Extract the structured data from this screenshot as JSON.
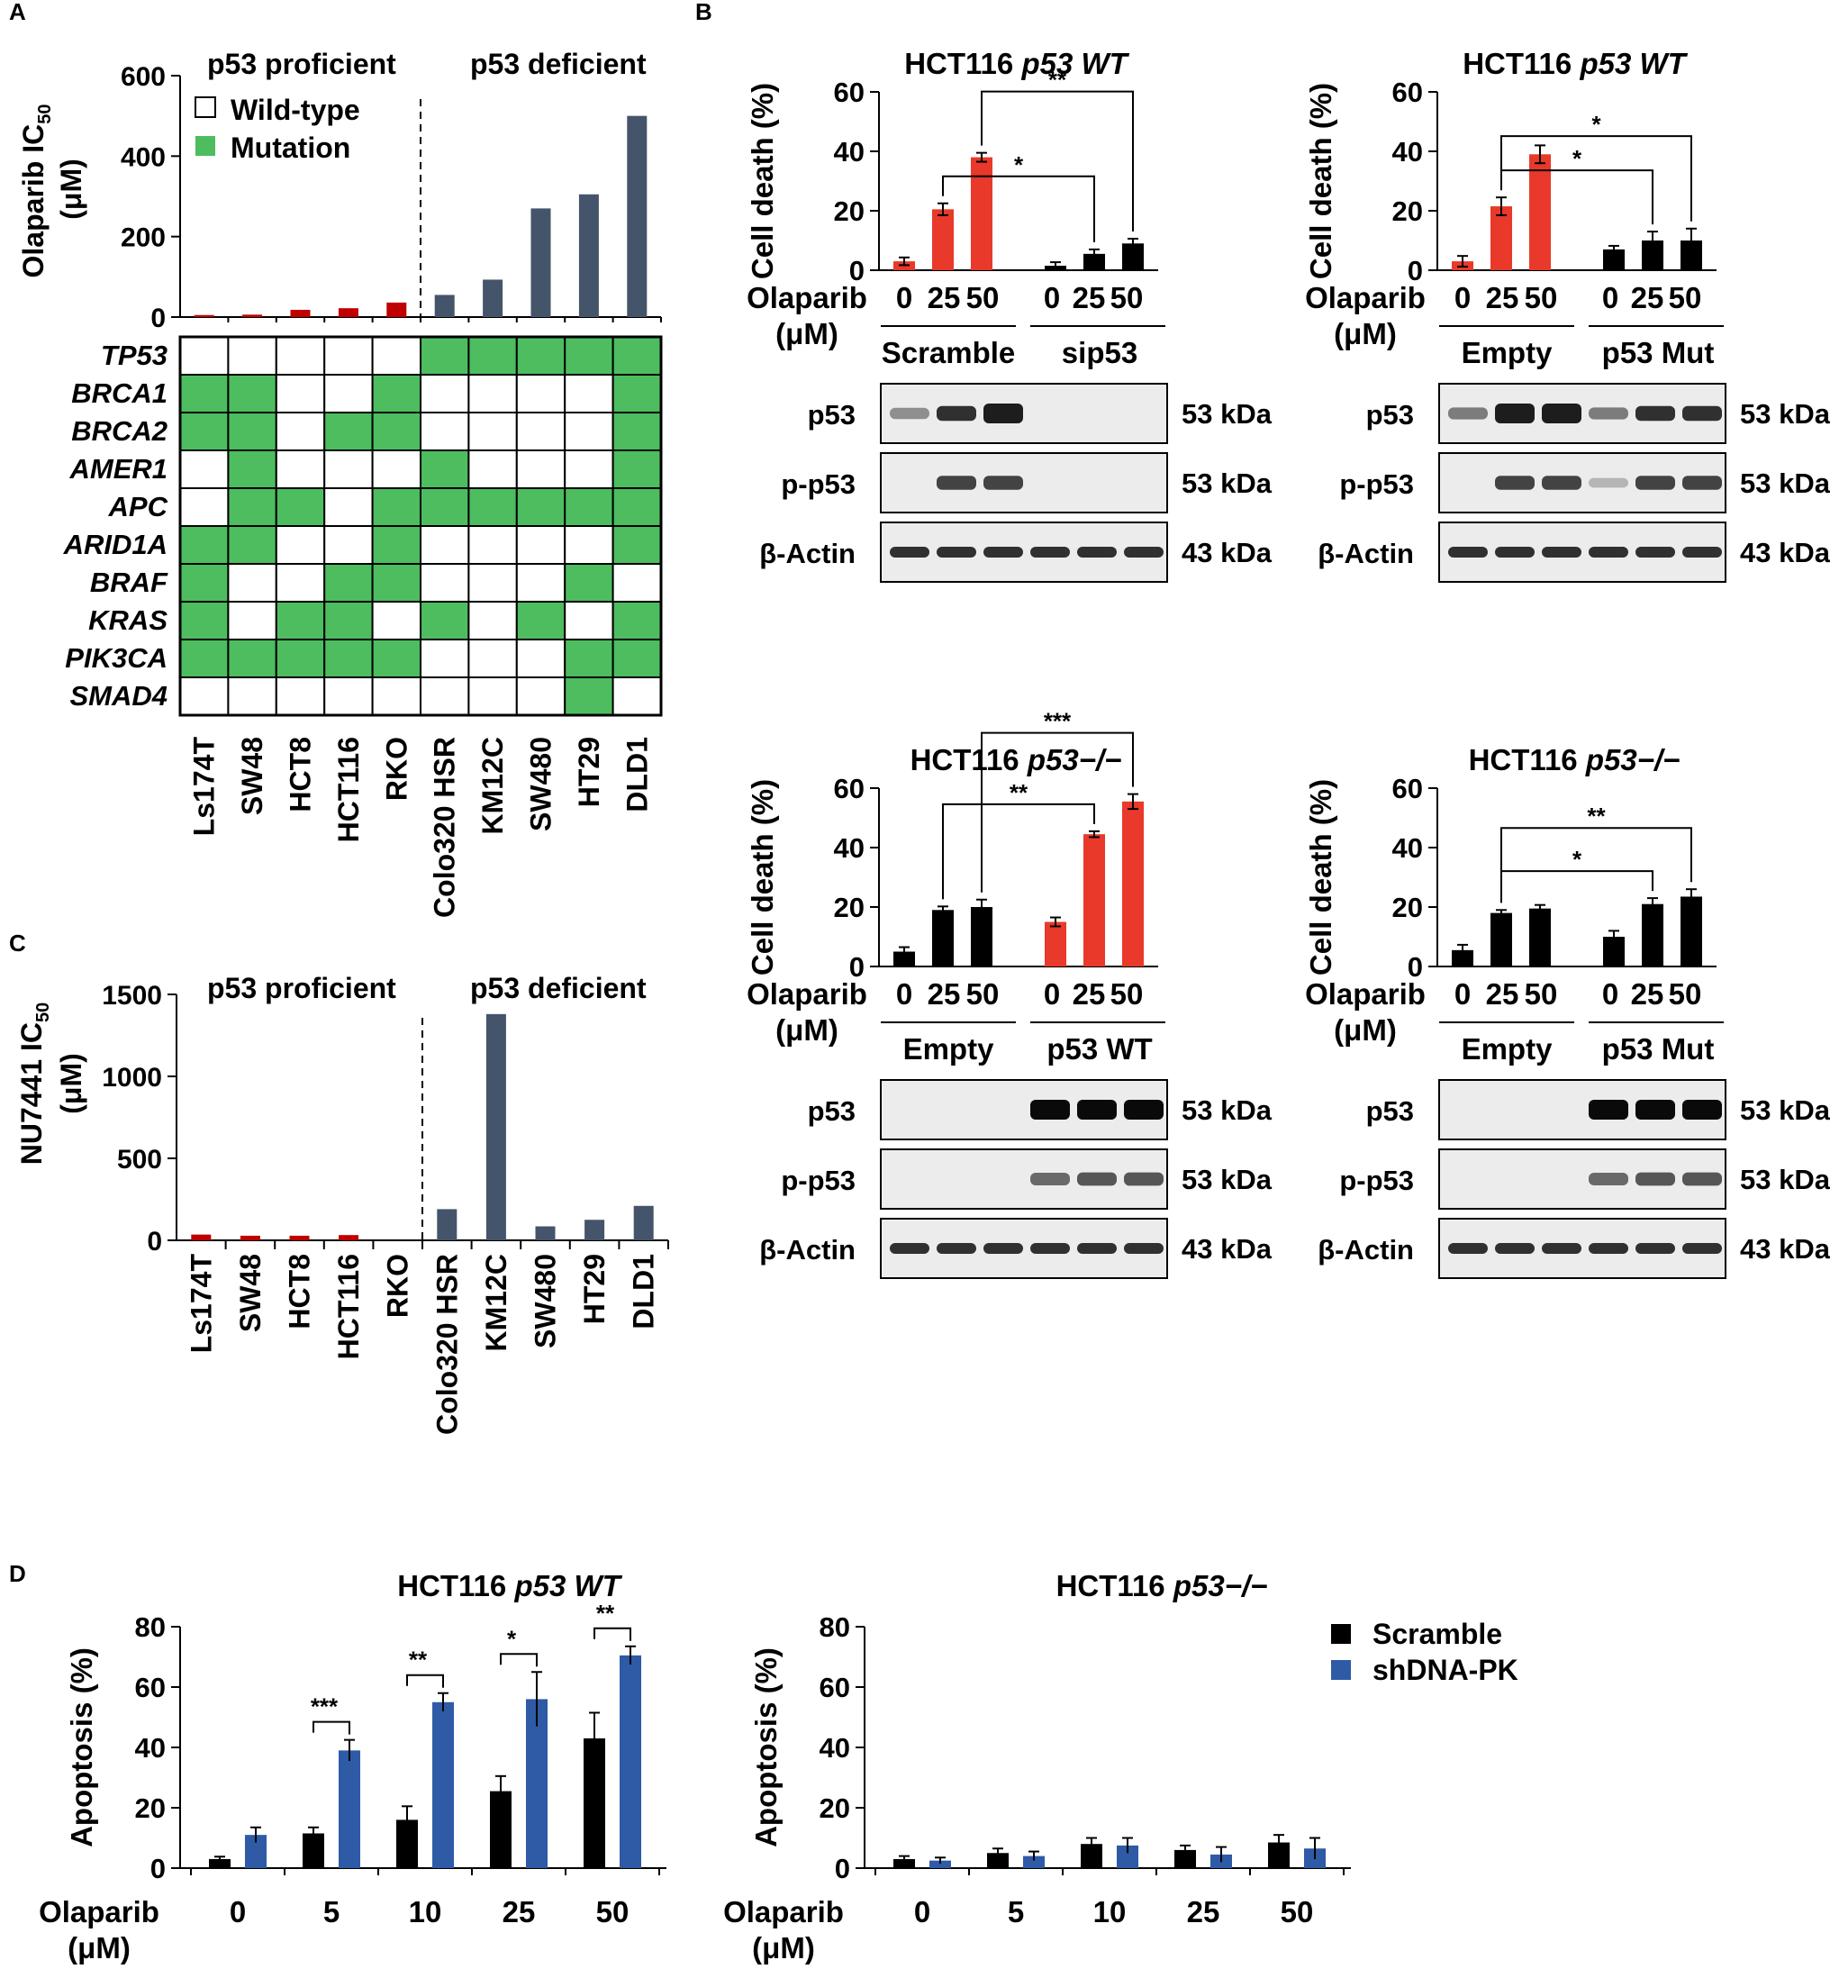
{
  "chart_data": [
    {
      "panel": "A",
      "type": "bar",
      "title": "",
      "ylabel": "Olaparib IC50 (μM)",
      "ylim": [
        0,
        600
      ],
      "yticks": [
        0,
        200,
        400,
        600
      ],
      "groups": [
        "p53 proficient",
        "p53 deficient"
      ],
      "legend": [
        "Wild-type",
        "Mutation"
      ],
      "categories": [
        "Ls174T",
        "SW48",
        "HCT8",
        "HCT116",
        "RKO",
        "Colo320 HSR",
        "KM12C",
        "SW480",
        "HT29",
        "DLD1"
      ],
      "values": [
        5,
        6,
        18,
        22,
        36,
        55,
        93,
        270,
        305,
        500
      ],
      "bar_colors": [
        "#c00000",
        "#c00000",
        "#c00000",
        "#c00000",
        "#c00000",
        "#44546a",
        "#44546a",
        "#44546a",
        "#44546a",
        "#44546a"
      ],
      "divider_after_index": 4
    },
    {
      "panel": "A-heatmap",
      "type": "heatmap",
      "rows": [
        "TP53",
        "BRCA1",
        "BRCA2",
        "AMER1",
        "APC",
        "ARID1A",
        "BRAF",
        "KRAS",
        "PIK3CA",
        "SMAD4"
      ],
      "columns": [
        "Ls174T",
        "SW48",
        "HCT8",
        "HCT116",
        "RKO",
        "Colo320 HSR",
        "KM12C",
        "SW480",
        "HT29",
        "DLD1"
      ],
      "matrix": [
        [
          0,
          0,
          0,
          0,
          0,
          1,
          1,
          1,
          1,
          1
        ],
        [
          1,
          1,
          0,
          0,
          1,
          0,
          0,
          0,
          0,
          1
        ],
        [
          1,
          1,
          0,
          1,
          1,
          0,
          0,
          0,
          0,
          1
        ],
        [
          0,
          1,
          0,
          0,
          0,
          1,
          0,
          0,
          0,
          1
        ],
        [
          0,
          1,
          1,
          0,
          1,
          1,
          1,
          1,
          1,
          1
        ],
        [
          1,
          1,
          0,
          0,
          1,
          0,
          0,
          0,
          0,
          1
        ],
        [
          1,
          0,
          0,
          1,
          1,
          0,
          0,
          0,
          1,
          0
        ],
        [
          1,
          0,
          1,
          1,
          0,
          1,
          0,
          1,
          0,
          1
        ],
        [
          1,
          1,
          1,
          1,
          1,
          0,
          0,
          0,
          1,
          1
        ],
        [
          0,
          0,
          0,
          0,
          0,
          0,
          0,
          0,
          1,
          0
        ]
      ],
      "colors": {
        "wild_type": "#ffffff",
        "mutation": "#4dbd5f"
      }
    },
    {
      "panel": "C",
      "type": "bar",
      "ylabel": "NU7441 IC50 (μM)",
      "ylim": [
        0,
        1500
      ],
      "yticks": [
        0,
        500,
        1000,
        1500
      ],
      "groups": [
        "p53 proficient",
        "p53 deficient"
      ],
      "categories": [
        "Ls174T",
        "SW48",
        "HCT8",
        "HCT116",
        "RKO",
        "Colo320 HSR",
        "KM12C",
        "SW480",
        "HT29",
        "DLD1"
      ],
      "values": [
        35,
        28,
        28,
        32,
        0,
        190,
        1380,
        85,
        125,
        210
      ],
      "bar_colors": [
        "#c00000",
        "#c00000",
        "#c00000",
        "#c00000",
        "#c00000",
        "#44546a",
        "#44546a",
        "#44546a",
        "#44546a",
        "#44546a"
      ],
      "divider_after_index": 4
    },
    {
      "panel": "B1",
      "type": "bar",
      "title": "HCT116 ",
      "title_italic": "p53 WT",
      "ylabel": "Cell death (%)",
      "xlabel": "Olaparib (μM)",
      "ylim": [
        0,
        60
      ],
      "yticks": [
        0,
        20,
        40,
        60
      ],
      "categories": [
        "0",
        "25",
        "50",
        "0",
        "25",
        "50"
      ],
      "values": [
        3,
        20.5,
        38,
        1.5,
        5.5,
        9
      ],
      "errors": [
        1.3,
        2.0,
        1.5,
        1.2,
        1.5,
        1.6
      ],
      "bar_colors": [
        "#e8392b",
        "#e8392b",
        "#e8392b",
        "#000000",
        "#000000",
        "#000000"
      ],
      "groups": [
        "Scramble",
        "sip53"
      ],
      "sig": [
        {
          "from": 1,
          "to": 4,
          "label": "*"
        },
        {
          "from": 2,
          "to": 5,
          "label": "**"
        }
      ],
      "blots": [
        {
          "label": "p53",
          "kda": "53 kDa"
        },
        {
          "label": "p-p53",
          "kda": "53 kDa"
        },
        {
          "label": "β-Actin",
          "kda": "43 kDa"
        }
      ],
      "blot_intensity": [
        [
          0.3,
          0.8,
          0.9,
          0.0,
          0.0,
          0.0
        ],
        [
          0.0,
          0.7,
          0.7,
          0.0,
          0.0,
          0.0
        ],
        [
          0.8,
          0.8,
          0.8,
          0.8,
          0.8,
          0.8
        ]
      ]
    },
    {
      "panel": "B2",
      "type": "bar",
      "title": "HCT116 ",
      "title_italic": "p53 WT",
      "ylabel": "Cell death (%)",
      "xlabel": "Olaparib (μM)",
      "ylim": [
        0,
        60
      ],
      "yticks": [
        0,
        20,
        40,
        60
      ],
      "categories": [
        "0",
        "25",
        "50",
        "0",
        "25",
        "50"
      ],
      "values": [
        3,
        21.5,
        39,
        7,
        10,
        10
      ],
      "errors": [
        1.8,
        3.0,
        3.0,
        1.2,
        3.0,
        4.0
      ],
      "bar_colors": [
        "#e8392b",
        "#e8392b",
        "#e8392b",
        "#000000",
        "#000000",
        "#000000"
      ],
      "groups": [
        "Empty",
        "p53 Mut"
      ],
      "sig": [
        {
          "from": 1,
          "to": 4,
          "label": "*"
        },
        {
          "from": 1,
          "to": 5,
          "label": "*"
        }
      ],
      "blots": [
        {
          "label": "p53",
          "kda": "53 kDa"
        },
        {
          "label": "p-p53",
          "kda": "53 kDa"
        },
        {
          "label": "β-Actin",
          "kda": "43 kDa"
        }
      ],
      "blot_intensity": [
        [
          0.4,
          0.9,
          0.9,
          0.4,
          0.8,
          0.8
        ],
        [
          0.0,
          0.7,
          0.7,
          0.1,
          0.7,
          0.7
        ],
        [
          0.8,
          0.8,
          0.8,
          0.8,
          0.8,
          0.8
        ]
      ]
    },
    {
      "panel": "B3",
      "type": "bar",
      "title": "HCT116 ",
      "title_italic": "p53−/−",
      "ylabel": "Cell death (%)",
      "xlabel": "Olaparib (μM)",
      "ylim": [
        0,
        60
      ],
      "yticks": [
        0,
        20,
        40,
        60
      ],
      "categories": [
        "0",
        "25",
        "50",
        "0",
        "25",
        "50"
      ],
      "values": [
        5,
        19,
        20,
        15,
        44.5,
        55.5
      ],
      "errors": [
        1.5,
        1.2,
        2.5,
        1.5,
        1.0,
        2.5
      ],
      "bar_colors": [
        "#000000",
        "#000000",
        "#000000",
        "#e8392b",
        "#e8392b",
        "#e8392b"
      ],
      "groups": [
        "Empty",
        "p53 WT"
      ],
      "sig": [
        {
          "from": 1,
          "to": 4,
          "label": "**"
        },
        {
          "from": 2,
          "to": 5,
          "label": "***"
        }
      ],
      "blots": [
        {
          "label": "p53",
          "kda": "53 kDa"
        },
        {
          "label": "p-p53",
          "kda": "53 kDa"
        },
        {
          "label": "β-Actin",
          "kda": "43 kDa"
        }
      ],
      "blot_intensity": [
        [
          0.0,
          0.0,
          0.0,
          1.0,
          1.0,
          1.0
        ],
        [
          0.0,
          0.0,
          0.0,
          0.5,
          0.6,
          0.6
        ],
        [
          0.8,
          0.8,
          0.8,
          0.8,
          0.8,
          0.8
        ]
      ]
    },
    {
      "panel": "B4",
      "type": "bar",
      "title": "HCT116 ",
      "title_italic": "p53−/−",
      "ylabel": "Cell death (%)",
      "xlabel": "Olaparib (μM)",
      "ylim": [
        0,
        60
      ],
      "yticks": [
        0,
        20,
        40,
        60
      ],
      "categories": [
        "0",
        "25",
        "50",
        "0",
        "25",
        "50"
      ],
      "values": [
        5.5,
        18,
        19.5,
        10,
        21,
        23.5
      ],
      "errors": [
        1.8,
        1.0,
        1.2,
        2.0,
        2.0,
        2.5
      ],
      "bar_colors": [
        "#000000",
        "#000000",
        "#000000",
        "#000000",
        "#000000",
        "#000000"
      ],
      "groups": [
        "Empty",
        "p53 Mut"
      ],
      "sig": [
        {
          "from": 1,
          "to": 4,
          "label": "*"
        },
        {
          "from": 1,
          "to": 5,
          "label": "**"
        }
      ],
      "blots": [
        {
          "label": "p53",
          "kda": "53 kDa"
        },
        {
          "label": "p-p53",
          "kda": "53 kDa"
        },
        {
          "label": "β-Actin",
          "kda": "43 kDa"
        }
      ],
      "blot_intensity": [
        [
          0.0,
          0.0,
          0.0,
          1.0,
          1.0,
          1.0
        ],
        [
          0.0,
          0.0,
          0.0,
          0.5,
          0.6,
          0.6
        ],
        [
          0.8,
          0.8,
          0.8,
          0.8,
          0.8,
          0.8
        ]
      ]
    },
    {
      "panel": "D1",
      "type": "bar",
      "title": "HCT116 ",
      "title_italic": "p53 WT",
      "ylabel": "Apoptosis (%)",
      "xlabel": "Olaparib (μM)",
      "ylim": [
        0,
        80
      ],
      "yticks": [
        0,
        20,
        40,
        60,
        80
      ],
      "categories": [
        "0",
        "5",
        "10",
        "25",
        "50"
      ],
      "series": [
        {
          "name": "Scramble",
          "color": "#000000",
          "values": [
            3,
            11.5,
            16,
            25.5,
            43
          ],
          "errors": [
            0.8,
            2.0,
            4.5,
            5.0,
            8.5
          ]
        },
        {
          "name": "shDNA-PK",
          "color": "#2e5aa6",
          "values": [
            11,
            39,
            55,
            56,
            70.5
          ],
          "errors": [
            2.5,
            3.5,
            3.0,
            9.0,
            3.0
          ]
        }
      ],
      "sig": [
        "",
        "***",
        "**",
        "*",
        "**"
      ]
    },
    {
      "panel": "D2",
      "type": "bar",
      "title": "HCT116 ",
      "title_italic": "p53−/−",
      "ylabel": "Apoptosis (%)",
      "xlabel": "Olaparib (μM)",
      "ylim": [
        0,
        80
      ],
      "yticks": [
        0,
        20,
        40,
        60,
        80
      ],
      "categories": [
        "0",
        "5",
        "10",
        "25",
        "50"
      ],
      "series": [
        {
          "name": "Scramble",
          "color": "#000000",
          "values": [
            3,
            5,
            8,
            6,
            8.5
          ],
          "errors": [
            1.0,
            1.5,
            2.0,
            1.5,
            2.5
          ]
        },
        {
          "name": "shDNA-PK",
          "color": "#2e5aa6",
          "values": [
            2.5,
            4,
            7.5,
            4.5,
            6.5
          ],
          "errors": [
            1.0,
            1.5,
            2.5,
            2.5,
            3.5
          ]
        }
      ],
      "sig": [
        "",
        "",
        "",
        "",
        ""
      ]
    }
  ],
  "labels": {
    "panel_A": "A",
    "panel_B": "B",
    "panel_C": "C",
    "panel_D": "D",
    "p53_proficient": "p53 proficient",
    "p53_deficient": "p53 deficient",
    "legend_wildtype": "Wild-type",
    "legend_mutation": "Mutation",
    "olaparib_ic50": "Olaparib IC",
    "nu7441_ic50": "NU7441 IC",
    "ic50_sub": "50",
    "um_unit": "(μM)",
    "olaparib": "Olaparib",
    "d_legend_scramble": "Scramble",
    "d_legend_shdnapk": "shDNA-PK"
  }
}
